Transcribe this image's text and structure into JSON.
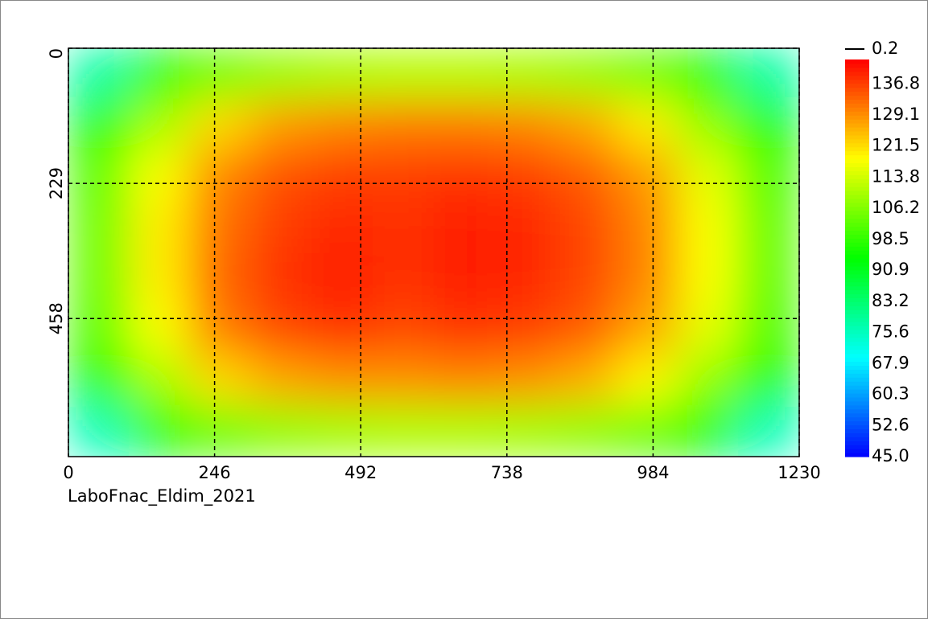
{
  "chart_data": {
    "type": "heatmap",
    "caption": "LaboFnac_Eldim_2021",
    "xlim": [
      0,
      1230
    ],
    "xticks": [
      0,
      246,
      492,
      738,
      984,
      1230
    ],
    "ylim": [
      0,
      692
    ],
    "yticks": [
      0,
      229,
      458
    ],
    "y_inverted": true,
    "grid": true,
    "z": [
      [
        78,
        96,
        104,
        108,
        110,
        111,
        111,
        110,
        108,
        104,
        96,
        78
      ],
      [
        96,
        110,
        122,
        128,
        130,
        131,
        131,
        130,
        127,
        120,
        108,
        95
      ],
      [
        102,
        118,
        130,
        135,
        137,
        137,
        138,
        137,
        134,
        128,
        116,
        101
      ],
      [
        104,
        120,
        132,
        137,
        139,
        138,
        140,
        139,
        136,
        130,
        118,
        103
      ],
      [
        104,
        120,
        133,
        138,
        140,
        138,
        140,
        139,
        136,
        130,
        118,
        103
      ],
      [
        102,
        118,
        131,
        136,
        138,
        136,
        138,
        137,
        134,
        127,
        116,
        101
      ],
      [
        96,
        110,
        122,
        127,
        129,
        129,
        130,
        129,
        126,
        119,
        108,
        95
      ],
      [
        76,
        95,
        103,
        107,
        109,
        110,
        110,
        109,
        107,
        103,
        95,
        76
      ]
    ],
    "colorscale": [
      "#0000ff",
      "#00ffff",
      "#00ff00",
      "#ffff00",
      "#ff0000"
    ],
    "zlim": [
      45,
      142.8
    ],
    "zticks": [
      {
        "value": 45,
        "label": "45.0"
      },
      52.6,
      60.3,
      67.9,
      75.6,
      83.2,
      90.9,
      98.5,
      106.2,
      113.8,
      121.5,
      129.1,
      136.8
    ],
    "contour_label": "0.2"
  }
}
